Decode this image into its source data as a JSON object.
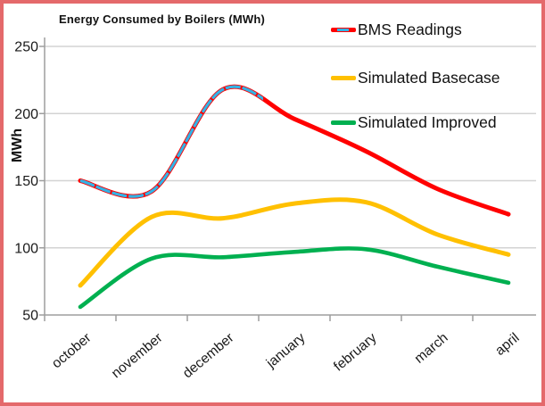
{
  "chart_data": {
    "type": "line",
    "title": "Energy Consumed by Boilers (MWh)",
    "ylabel": "MWh",
    "ylim": [
      50,
      257
    ],
    "yticks": [
      50,
      100,
      150,
      200,
      250
    ],
    "grid": true,
    "legend_position": "top-right",
    "categories": [
      "october",
      "november",
      "december",
      "january",
      "february",
      "march",
      "april"
    ],
    "series": [
      {
        "name": "BMS Readings",
        "color": "#FF0000",
        "overlay_color": "#33B3E6",
        "overlay_style": "dashed",
        "overlay_end_index": 2.56,
        "smooth": true,
        "values": [
          150,
          142,
          218,
          196,
          172,
          144,
          125
        ]
      },
      {
        "name": "Simulated Basecase",
        "color": "#FFC000",
        "smooth": true,
        "values": [
          72,
          123,
          122,
          133,
          134,
          110,
          95
        ]
      },
      {
        "name": "Simulated Improved",
        "color": "#00B050",
        "smooth": true,
        "values": [
          56,
          92,
          93,
          97,
          99,
          86,
          74
        ]
      }
    ]
  },
  "frame": {
    "border_color": "#E4696B",
    "background": "#FFFFFF",
    "gridline_color": "#D3D3D3",
    "axis_color": "#9E9E9E",
    "text_color": "#1A1A1A"
  }
}
